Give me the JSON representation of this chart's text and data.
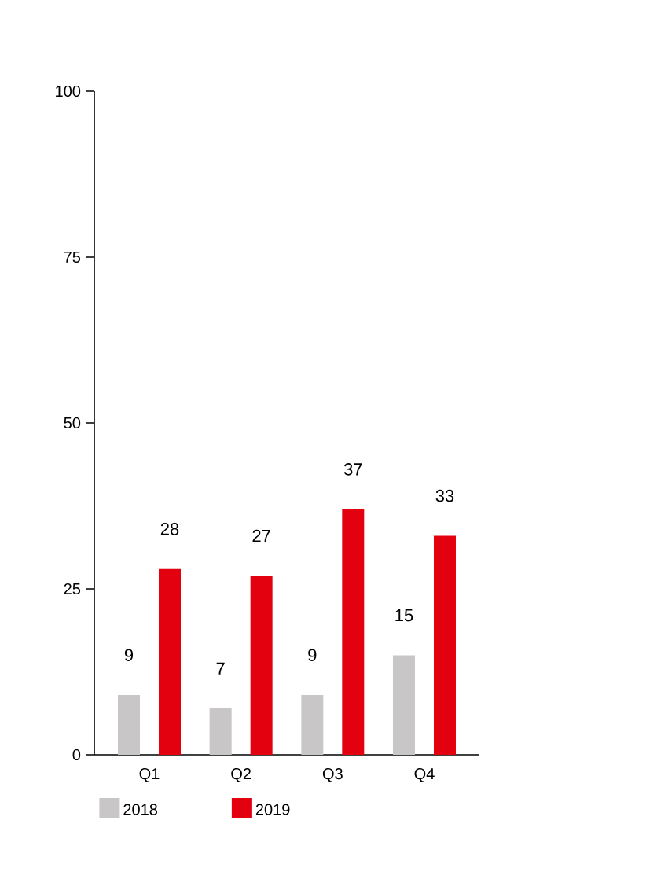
{
  "chart_data": {
    "type": "bar",
    "categories": [
      "Q1",
      "Q2",
      "Q3",
      "Q4"
    ],
    "series": [
      {
        "name": "2018",
        "color": "#c9c6c7",
        "values": [
          9,
          7,
          9,
          15
        ]
      },
      {
        "name": "2019",
        "color": "#e3000f",
        "values": [
          28,
          27,
          37,
          33
        ]
      }
    ],
    "ylim": [
      0,
      100
    ],
    "yticks": [
      0,
      25,
      50,
      75,
      100
    ],
    "data_labels": true,
    "legend": "bottom left"
  }
}
